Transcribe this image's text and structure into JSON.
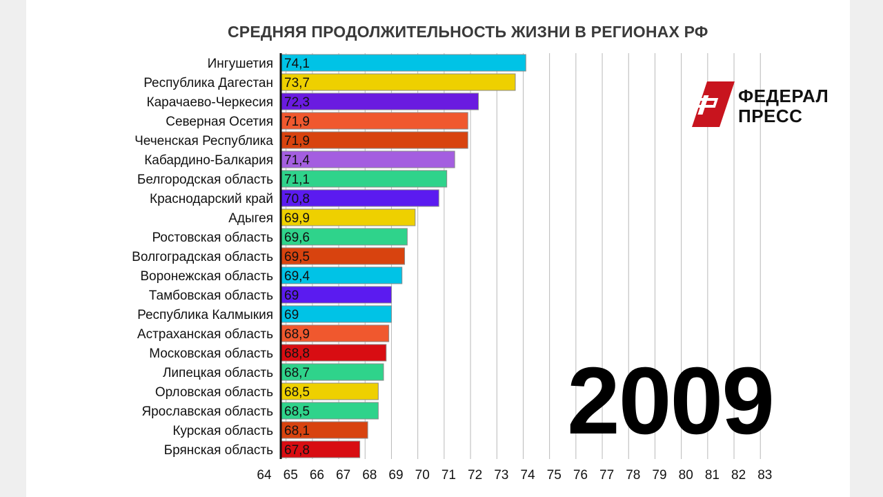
{
  "chart_data": {
    "type": "bar",
    "orientation": "horizontal",
    "title": "СРЕДНЯЯ ПРОДОЛЖИТЕЛЬНОСТЬ ЖИЗНИ В РЕГИОНАХ РФ",
    "categories": [
      "Ингушетия",
      "Республика Дагестан",
      "Карачаево-Черкесия",
      "Северная Осетия",
      "Чеченская Республика",
      "Кабардино-Балкария",
      "Белгородская область",
      "Краснодарский край",
      "Адыгея",
      "Ростовская область",
      "Волгоградская область",
      "Воронежская область",
      "Тамбовская область",
      "Республика Калмыкия",
      "Астраханская область",
      "Московская область",
      "Липецкая область",
      "Орловская область",
      "Ярославская область",
      "Курская область",
      "Брянская область"
    ],
    "values": [
      74.1,
      73.7,
      72.3,
      71.9,
      71.9,
      71.4,
      71.1,
      70.8,
      69.9,
      69.6,
      69.5,
      69.4,
      69,
      69,
      68.9,
      68.8,
      68.7,
      68.5,
      68.5,
      68.1,
      67.8
    ],
    "value_labels": [
      "74,1",
      "73,7",
      "72,3",
      "71,9",
      "71,9",
      "71,4",
      "71,1",
      "70,8",
      "69,9",
      "69,6",
      "69,5",
      "69,4",
      "69",
      "69",
      "68,9",
      "68,8",
      "68,7",
      "68,5",
      "68,5",
      "68,1",
      "67,8"
    ],
    "colors": [
      "#00c3e6",
      "#eed000",
      "#6a1be0",
      "#f0582e",
      "#d8430f",
      "#a45ee0",
      "#2fd38b",
      "#5b1bf0",
      "#eed000",
      "#2fd38b",
      "#d8430f",
      "#00c3e6",
      "#5b1bf0",
      "#00c3e6",
      "#f0582e",
      "#d80d12",
      "#2fd38b",
      "#eed000",
      "#2fd38b",
      "#d8430f",
      "#d80d12"
    ],
    "x_ticks": [
      "64",
      "65",
      "66",
      "67",
      "68",
      "69",
      "70",
      "71",
      "72",
      "73",
      "74",
      "75",
      "76",
      "77",
      "78",
      "79",
      "80",
      "81",
      "82",
      "83"
    ],
    "xlim": [
      64.8,
      83.8
    ],
    "grid": true,
    "xlabel": "",
    "ylabel": ""
  },
  "year_label": "2009",
  "logo": {
    "line1": "ФЕДЕРАЛ",
    "line2": "ПРЕСС"
  }
}
